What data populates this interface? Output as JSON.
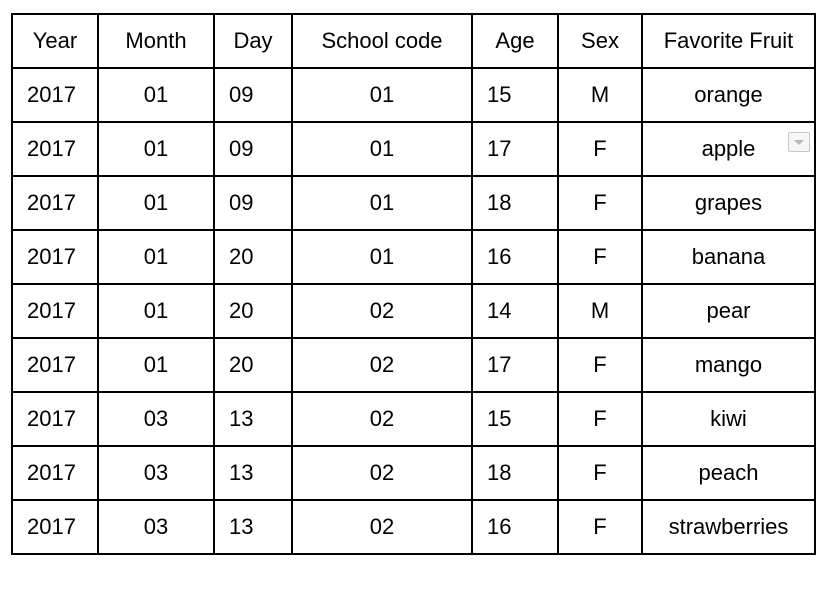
{
  "table": {
    "headers": [
      "Year",
      "Month",
      "Day",
      "School code",
      "Age",
      "Sex",
      "Favorite Fruit"
    ],
    "rows": [
      [
        "2017",
        "01",
        "09",
        "01",
        "15",
        "M",
        "orange"
      ],
      [
        "2017",
        "01",
        "09",
        "01",
        "17",
        "F",
        "apple"
      ],
      [
        "2017",
        "01",
        "09",
        "01",
        "18",
        "F",
        "grapes"
      ],
      [
        "2017",
        "01",
        "20",
        "01",
        "16",
        "F",
        "banana"
      ],
      [
        "2017",
        "01",
        "20",
        "02",
        "14",
        "M",
        "pear"
      ],
      [
        "2017",
        "01",
        "20",
        "02",
        "17",
        "F",
        "mango"
      ],
      [
        "2017",
        "03",
        "13",
        "02",
        "15",
        "F",
        "kiwi"
      ],
      [
        "2017",
        "03",
        "13",
        "02",
        "18",
        "F",
        "peach"
      ],
      [
        "2017",
        "03",
        "13",
        "02",
        "16",
        "F",
        "strawberries"
      ]
    ]
  },
  "icons": {
    "dropdown": "chevron-down-icon"
  }
}
